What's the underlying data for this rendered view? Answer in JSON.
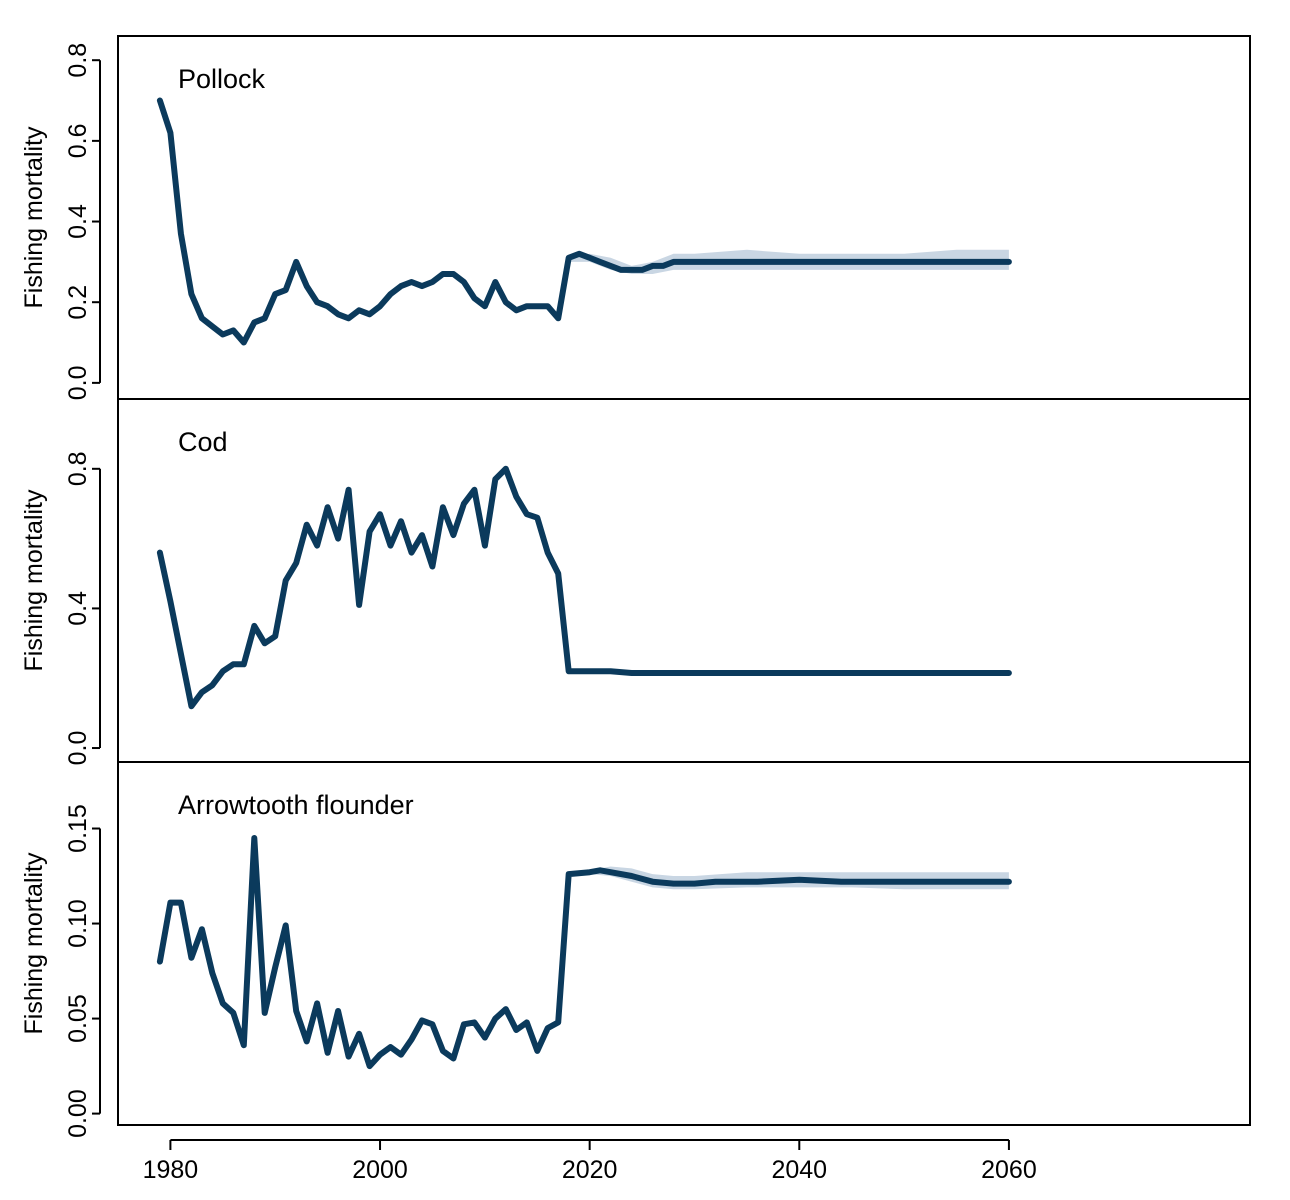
{
  "chart_data": {
    "type": "line",
    "xlim": [
      1975,
      2083
    ],
    "x_ticks": [
      1980,
      2000,
      2020,
      2040,
      2060
    ],
    "colors": {
      "line": "#0b3a5c",
      "band": "#c9d6e3"
    },
    "panels": [
      {
        "title": "Pollock",
        "ylabel": "Fishing mortality",
        "ylim": [
          -0.04,
          0.86
        ],
        "y_ticks": [
          0.0,
          0.2,
          0.4,
          0.6,
          0.8
        ],
        "y_tick_labels": [
          "0.0",
          "0.2",
          "0.4",
          "0.6",
          "0.8"
        ],
        "series": [
          {
            "x": [
              1979,
              1980,
              1981,
              1982,
              1983,
              1984,
              1985,
              1986,
              1987,
              1988,
              1989,
              1990,
              1991,
              1992,
              1993,
              1994,
              1995,
              1996,
              1997,
              1998,
              1999,
              2000,
              2001,
              2002,
              2003,
              2004,
              2005,
              2006,
              2007,
              2008,
              2009,
              2010,
              2011,
              2012,
              2013,
              2014,
              2015,
              2016,
              2017,
              2018,
              2019,
              2020,
              2021,
              2022,
              2023,
              2024,
              2025,
              2026,
              2027,
              2028,
              2029,
              2030,
              2032,
              2034,
              2036,
              2038,
              2040,
              2042,
              2044,
              2046,
              2048,
              2050,
              2052,
              2054,
              2056,
              2058,
              2060
            ],
            "y": [
              0.7,
              0.62,
              0.37,
              0.22,
              0.16,
              0.14,
              0.12,
              0.13,
              0.1,
              0.15,
              0.16,
              0.22,
              0.23,
              0.3,
              0.24,
              0.2,
              0.19,
              0.17,
              0.16,
              0.18,
              0.17,
              0.19,
              0.22,
              0.24,
              0.25,
              0.24,
              0.25,
              0.27,
              0.27,
              0.25,
              0.21,
              0.19,
              0.25,
              0.2,
              0.18,
              0.19,
              0.19,
              0.19,
              0.16,
              0.31,
              0.32,
              0.31,
              0.3,
              0.29,
              0.28,
              0.28,
              0.28,
              0.29,
              0.29,
              0.3,
              0.3,
              0.3,
              0.3,
              0.3,
              0.3,
              0.3,
              0.3,
              0.3,
              0.3,
              0.3,
              0.3,
              0.3,
              0.3,
              0.3,
              0.3,
              0.3,
              0.3
            ]
          }
        ],
        "band": {
          "x": [
            2018,
            2020,
            2022,
            2024,
            2026,
            2028,
            2030,
            2035,
            2040,
            2045,
            2050,
            2055,
            2060
          ],
          "lower": [
            0.3,
            0.3,
            0.28,
            0.27,
            0.27,
            0.28,
            0.28,
            0.28,
            0.28,
            0.28,
            0.28,
            0.28,
            0.28
          ],
          "upper": [
            0.31,
            0.32,
            0.31,
            0.29,
            0.3,
            0.32,
            0.32,
            0.33,
            0.32,
            0.32,
            0.32,
            0.33,
            0.33
          ]
        }
      },
      {
        "title": "Cod",
        "ylabel": "Fishing mortality",
        "ylim": [
          -0.04,
          1.0
        ],
        "y_ticks": [
          0.0,
          0.4,
          0.8
        ],
        "y_tick_labels": [
          "0.0",
          "0.4",
          "0.8"
        ],
        "series": [
          {
            "x": [
              1979,
              1980,
              1981,
              1982,
              1983,
              1984,
              1985,
              1986,
              1987,
              1988,
              1989,
              1990,
              1991,
              1992,
              1993,
              1994,
              1995,
              1996,
              1997,
              1998,
              1999,
              2000,
              2001,
              2002,
              2003,
              2004,
              2005,
              2006,
              2007,
              2008,
              2009,
              2010,
              2011,
              2012,
              2013,
              2014,
              2015,
              2016,
              2017,
              2018,
              2020,
              2022,
              2024,
              2026,
              2028,
              2030,
              2035,
              2040,
              2045,
              2050,
              2055,
              2060
            ],
            "y": [
              0.56,
              0.42,
              0.27,
              0.12,
              0.16,
              0.18,
              0.22,
              0.24,
              0.24,
              0.35,
              0.3,
              0.32,
              0.48,
              0.53,
              0.64,
              0.58,
              0.69,
              0.6,
              0.74,
              0.41,
              0.62,
              0.67,
              0.58,
              0.65,
              0.56,
              0.61,
              0.52,
              0.69,
              0.61,
              0.7,
              0.74,
              0.58,
              0.77,
              0.8,
              0.72,
              0.67,
              0.66,
              0.56,
              0.5,
              0.22,
              0.22,
              0.22,
              0.215,
              0.215,
              0.215,
              0.215,
              0.215,
              0.215,
              0.215,
              0.215,
              0.215,
              0.215
            ]
          }
        ]
      },
      {
        "title": "Arrowtooth flounder",
        "ylabel": "Fishing mortality",
        "ylim": [
          -0.006,
          0.185
        ],
        "y_ticks": [
          0.0,
          0.05,
          0.1,
          0.15
        ],
        "y_tick_labels": [
          "0.00",
          "0.05",
          "0.10",
          "0.15"
        ],
        "series": [
          {
            "x": [
              1979,
              1980,
              1981,
              1982,
              1983,
              1984,
              1985,
              1986,
              1987,
              1988,
              1989,
              1990,
              1991,
              1992,
              1993,
              1994,
              1995,
              1996,
              1997,
              1998,
              1999,
              2000,
              2001,
              2002,
              2003,
              2004,
              2005,
              2006,
              2007,
              2008,
              2009,
              2010,
              2011,
              2012,
              2013,
              2014,
              2015,
              2016,
              2017,
              2018,
              2020,
              2021,
              2022,
              2024,
              2026,
              2028,
              2030,
              2032,
              2036,
              2040,
              2044,
              2048,
              2052,
              2056,
              2060
            ],
            "y": [
              0.08,
              0.111,
              0.111,
              0.082,
              0.097,
              0.074,
              0.058,
              0.053,
              0.036,
              0.145,
              0.053,
              0.077,
              0.099,
              0.054,
              0.038,
              0.058,
              0.032,
              0.054,
              0.03,
              0.042,
              0.025,
              0.031,
              0.035,
              0.031,
              0.039,
              0.049,
              0.047,
              0.033,
              0.029,
              0.047,
              0.048,
              0.04,
              0.05,
              0.055,
              0.044,
              0.048,
              0.033,
              0.045,
              0.048,
              0.126,
              0.127,
              0.128,
              0.127,
              0.125,
              0.122,
              0.121,
              0.121,
              0.122,
              0.122,
              0.123,
              0.122,
              0.122,
              0.122,
              0.122,
              0.122
            ]
          }
        ],
        "band": {
          "x": [
            2018,
            2020,
            2022,
            2024,
            2026,
            2028,
            2030,
            2035,
            2040,
            2045,
            2050,
            2055,
            2060
          ],
          "lower": [
            0.125,
            0.126,
            0.125,
            0.122,
            0.119,
            0.118,
            0.118,
            0.119,
            0.119,
            0.119,
            0.118,
            0.118,
            0.118
          ],
          "upper": [
            0.127,
            0.128,
            0.13,
            0.129,
            0.126,
            0.125,
            0.125,
            0.127,
            0.127,
            0.127,
            0.127,
            0.127,
            0.127
          ]
        }
      }
    ]
  }
}
